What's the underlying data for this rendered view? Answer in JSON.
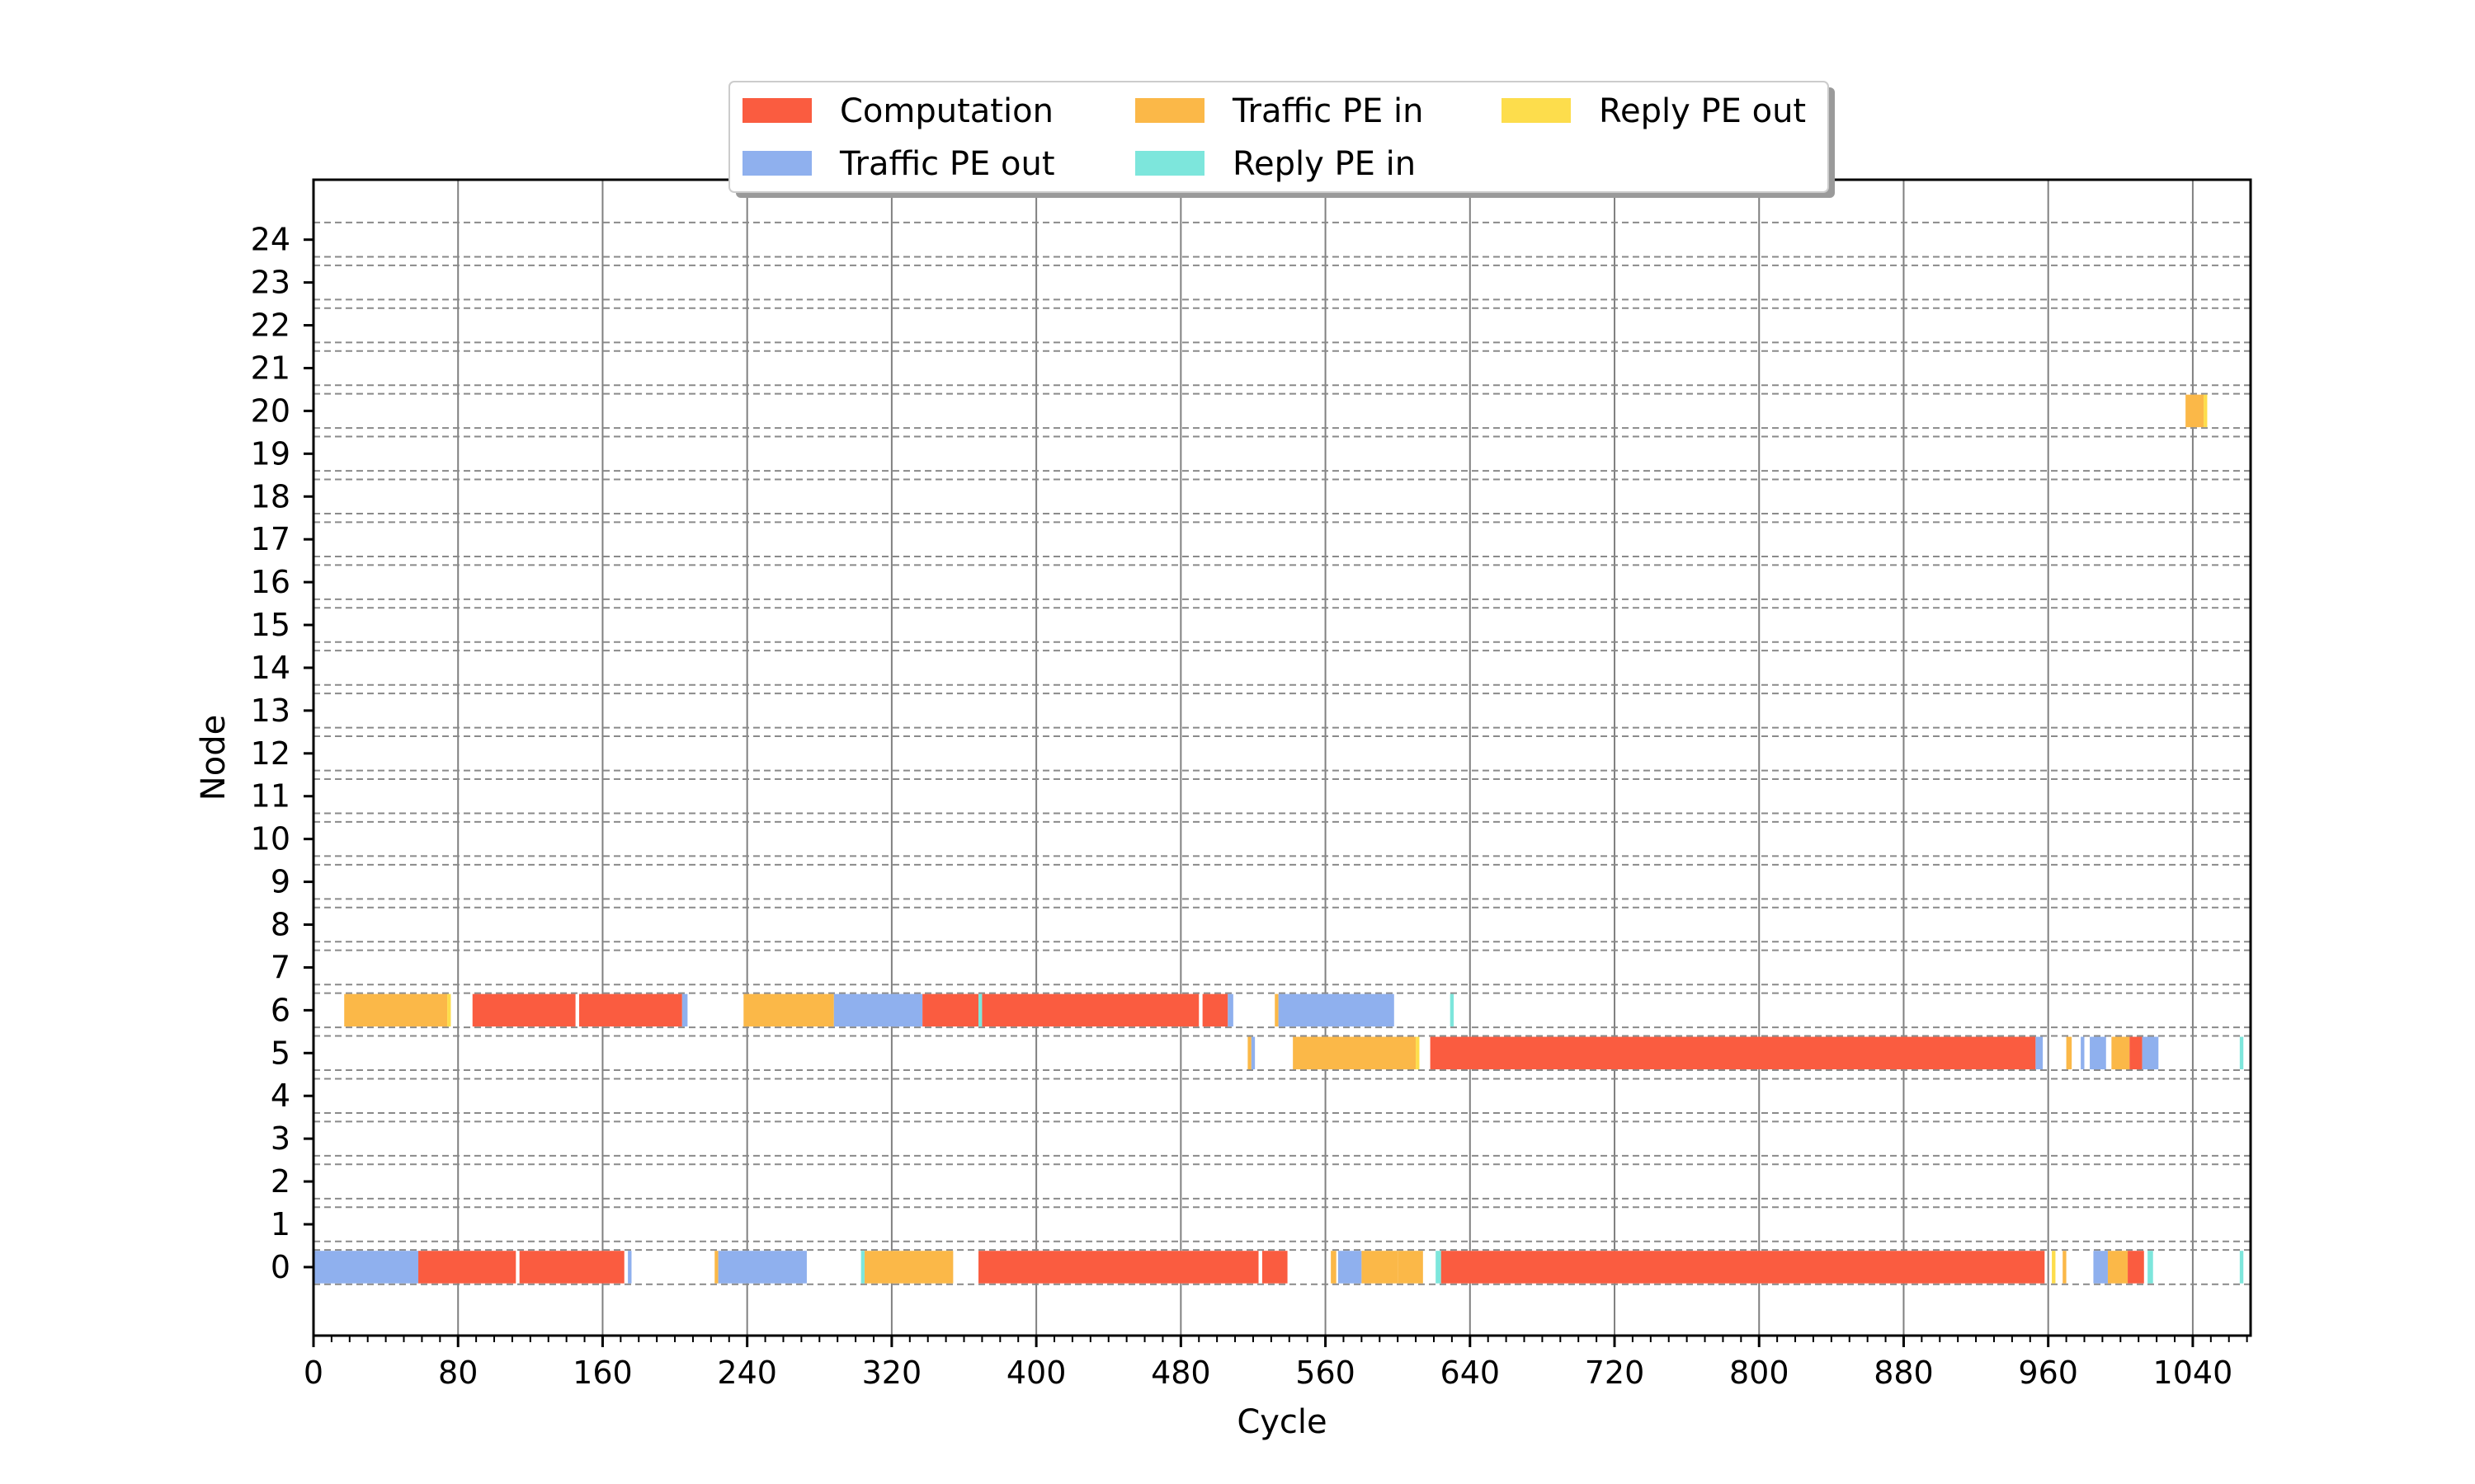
{
  "chart_data": {
    "type": "gantt",
    "xlabel": "Cycle",
    "ylabel": "Node",
    "xlim": [
      0,
      1072
    ],
    "ylim": [
      -1.6,
      25.4
    ],
    "xticks": [
      0,
      80,
      160,
      240,
      320,
      400,
      480,
      560,
      640,
      720,
      800,
      880,
      960,
      1040
    ],
    "yticks": [
      0,
      1,
      2,
      3,
      4,
      5,
      6,
      7,
      8,
      9,
      10,
      11,
      12,
      13,
      14,
      15,
      16,
      17,
      18,
      19,
      20,
      21,
      22,
      23,
      24
    ],
    "grid": {
      "x": true,
      "y_dashed_lane_borders": true
    },
    "legend": {
      "placement": "top-center",
      "entries": [
        {
          "label": "Computation",
          "color": "#fa5c40"
        },
        {
          "label": "Traffic PE out",
          "color": "#8fb0ee"
        },
        {
          "label": "Traffic PE in",
          "color": "#fbb848"
        },
        {
          "label": "Reply PE in",
          "color": "#7de6dc"
        },
        {
          "label": "Reply PE out",
          "color": "#fddd4c"
        }
      ]
    },
    "categories": [
      "Computation",
      "Traffic PE out",
      "Traffic PE in",
      "Reply PE in",
      "Reply PE out"
    ],
    "series": [
      {
        "node": 0,
        "segments": [
          {
            "start": 0,
            "end": 58,
            "cat": 1
          },
          {
            "start": 58,
            "end": 112,
            "cat": 0
          },
          {
            "start": 114,
            "end": 172,
            "cat": 0
          },
          {
            "start": 174,
            "end": 176,
            "cat": 1
          },
          {
            "start": 222,
            "end": 224,
            "cat": 2
          },
          {
            "start": 224,
            "end": 273,
            "cat": 1
          },
          {
            "start": 303,
            "end": 305,
            "cat": 3
          },
          {
            "start": 305,
            "end": 354,
            "cat": 2
          },
          {
            "start": 368,
            "end": 523,
            "cat": 0
          },
          {
            "start": 525,
            "end": 539,
            "cat": 0
          },
          {
            "start": 563,
            "end": 566,
            "cat": 2
          },
          {
            "start": 567,
            "end": 580,
            "cat": 1
          },
          {
            "start": 580,
            "end": 600,
            "cat": 2
          },
          {
            "start": 600,
            "end": 614,
            "cat": 2
          },
          {
            "start": 621,
            "end": 624,
            "cat": 3
          },
          {
            "start": 624,
            "end": 958,
            "cat": 0
          },
          {
            "start": 962,
            "end": 964,
            "cat": 4
          },
          {
            "start": 968,
            "end": 970,
            "cat": 2
          },
          {
            "start": 985,
            "end": 993,
            "cat": 1
          },
          {
            "start": 993,
            "end": 1004,
            "cat": 2
          },
          {
            "start": 1004,
            "end": 1013,
            "cat": 0
          },
          {
            "start": 1015,
            "end": 1018,
            "cat": 3
          },
          {
            "start": 1066,
            "end": 1068,
            "cat": 3
          }
        ]
      },
      {
        "node": 5,
        "segments": [
          {
            "start": 517,
            "end": 519,
            "cat": 2
          },
          {
            "start": 519,
            "end": 521,
            "cat": 1
          },
          {
            "start": 542,
            "end": 610,
            "cat": 2
          },
          {
            "start": 610,
            "end": 612,
            "cat": 4
          },
          {
            "start": 618,
            "end": 953,
            "cat": 0
          },
          {
            "start": 953,
            "end": 957,
            "cat": 1
          },
          {
            "start": 970,
            "end": 973,
            "cat": 2
          },
          {
            "start": 978,
            "end": 980,
            "cat": 1
          },
          {
            "start": 983,
            "end": 992,
            "cat": 1
          },
          {
            "start": 995,
            "end": 1005,
            "cat": 2
          },
          {
            "start": 1005,
            "end": 1012,
            "cat": 0
          },
          {
            "start": 1012,
            "end": 1021,
            "cat": 1
          },
          {
            "start": 1066,
            "end": 1068,
            "cat": 3
          }
        ]
      },
      {
        "node": 6,
        "segments": [
          {
            "start": 17,
            "end": 74,
            "cat": 2
          },
          {
            "start": 74,
            "end": 76,
            "cat": 4
          },
          {
            "start": 88,
            "end": 145,
            "cat": 0
          },
          {
            "start": 147,
            "end": 204,
            "cat": 0
          },
          {
            "start": 204,
            "end": 207,
            "cat": 1
          },
          {
            "start": 238,
            "end": 288,
            "cat": 2
          },
          {
            "start": 288,
            "end": 337,
            "cat": 1
          },
          {
            "start": 337,
            "end": 368,
            "cat": 0
          },
          {
            "start": 368,
            "end": 370,
            "cat": 3
          },
          {
            "start": 370,
            "end": 490,
            "cat": 0
          },
          {
            "start": 492,
            "end": 506,
            "cat": 0
          },
          {
            "start": 506,
            "end": 509,
            "cat": 1
          },
          {
            "start": 532,
            "end": 534,
            "cat": 2
          },
          {
            "start": 534,
            "end": 598,
            "cat": 1
          },
          {
            "start": 629,
            "end": 631,
            "cat": 3
          }
        ]
      },
      {
        "node": 20,
        "segments": [
          {
            "start": 1036,
            "end": 1046,
            "cat": 2
          },
          {
            "start": 1046,
            "end": 1048,
            "cat": 4
          }
        ]
      }
    ]
  }
}
